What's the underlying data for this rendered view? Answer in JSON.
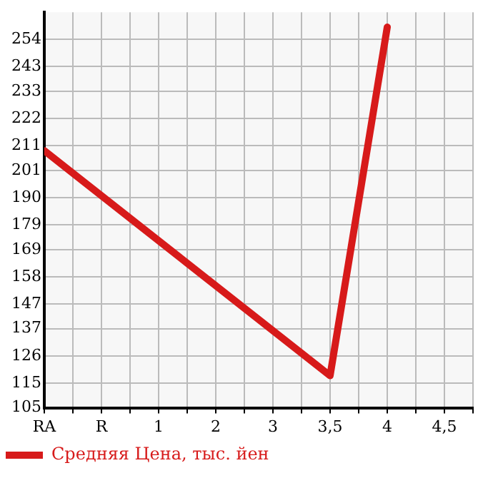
{
  "chart_data": {
    "type": "line",
    "categories": [
      "RA",
      "R",
      "1",
      "2",
      "3",
      "3,5",
      "4",
      "4,5"
    ],
    "series": [
      {
        "name": "Средняя Цена, тыс. йен",
        "color": "#d71a1a",
        "values": [
          209,
          null,
          null,
          null,
          null,
          118,
          259,
          null
        ]
      }
    ],
    "ylim": [
      105,
      265
    ],
    "yticks": [
      105,
      115,
      126,
      137,
      147,
      158,
      169,
      179,
      190,
      201,
      211,
      222,
      233,
      243,
      254
    ],
    "grid": true,
    "legend": "bottom",
    "marker": "none",
    "line_style": "solid"
  }
}
